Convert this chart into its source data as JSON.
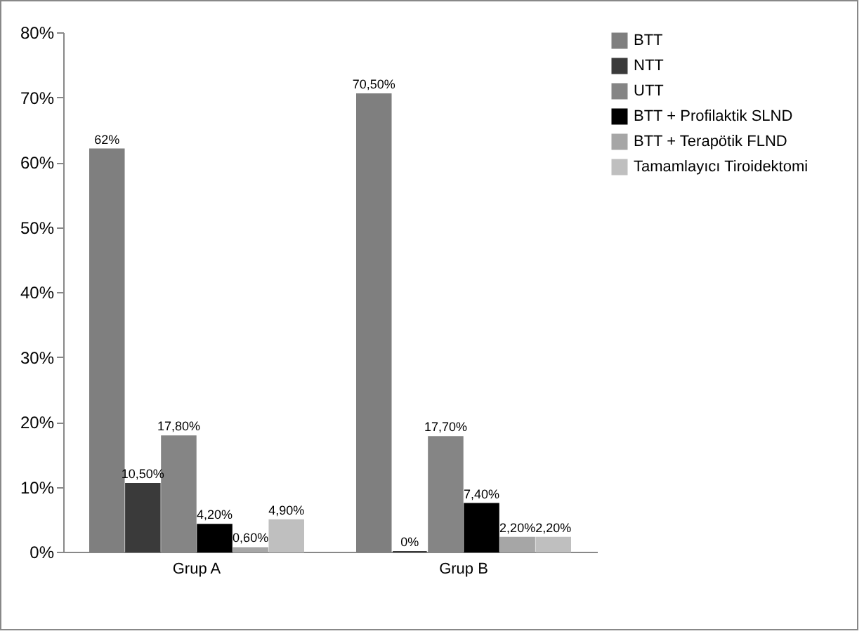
{
  "chart_data": {
    "type": "bar",
    "categories": [
      "Grup A",
      "Grup B"
    ],
    "series": [
      {
        "name": "BTT",
        "color": "#7f7f7f",
        "values": [
          62,
          70.5
        ],
        "value_labels": [
          "62%",
          "70,50%"
        ]
      },
      {
        "name": "NTT",
        "color": "#3a3a3a",
        "values": [
          10.5,
          0
        ],
        "value_labels": [
          "10,50%",
          "0%"
        ]
      },
      {
        "name": "UTT",
        "color": "#858585",
        "values": [
          17.8,
          17.7
        ],
        "value_labels": [
          "17,80%",
          "17,70%"
        ]
      },
      {
        "name": "BTT + Profilaktik SLND",
        "color": "#000000",
        "values": [
          4.2,
          7.4
        ],
        "value_labels": [
          "4,20%",
          "7,40%"
        ]
      },
      {
        "name": "BTT + Terapötik FLND",
        "color": "#a6a6a6",
        "values": [
          0.6,
          2.2
        ],
        "value_labels": [
          "0,60%",
          "2,20%"
        ]
      },
      {
        "name": "Tamamlayıcı Tiroidektomi",
        "color": "#bfbfbf",
        "values": [
          4.9,
          2.2
        ],
        "value_labels": [
          "4,90%",
          "2,20%"
        ]
      }
    ],
    "ylim": [
      0,
      80
    ],
    "yticks": [
      {
        "value": 0,
        "label": "0%"
      },
      {
        "value": 10,
        "label": "10%"
      },
      {
        "value": 20,
        "label": "20%"
      },
      {
        "value": 30,
        "label": "30%"
      },
      {
        "value": 40,
        "label": "40%"
      },
      {
        "value": 50,
        "label": "50%"
      },
      {
        "value": 60,
        "label": "60%"
      },
      {
        "value": 70,
        "label": "70%"
      },
      {
        "value": 80,
        "label": "80%"
      }
    ],
    "legend": "right"
  }
}
